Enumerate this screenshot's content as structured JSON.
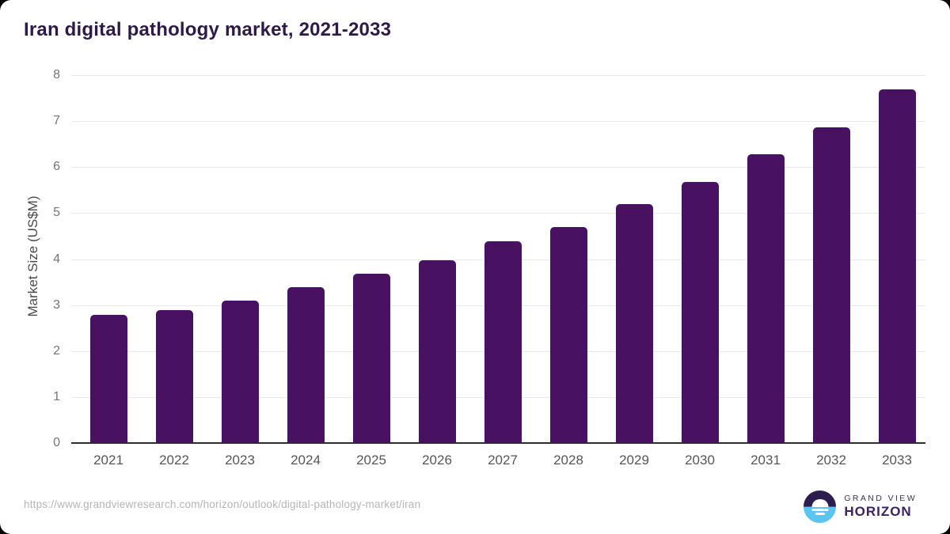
{
  "title": "Iran digital pathology market, 2021-2033",
  "source_url": "https://www.grandviewresearch.com/horizon/outlook/digital-pathology-market/iran",
  "logo": {
    "top": "GRAND VIEW",
    "bottom": "HORIZON",
    "mark": "sunrise-horizon-icon"
  },
  "colors": {
    "bar": "#481162",
    "title": "#2e1a47",
    "y_title": "#4a4a4a",
    "ytick": "#757575",
    "xtick": "#565656",
    "gridline": "#e9e9e9",
    "axis_line": "#2d2d2d",
    "url": "#b5b5b5",
    "logo_dark": "#2d1c4e",
    "logo_blue": "#5ac5f1",
    "logo_top_text": "#3a3550",
    "logo_bottom_text": "#3b2263"
  },
  "chart_data": {
    "type": "bar",
    "title": "Iran digital pathology market, 2021-2033",
    "categories": [
      "2021",
      "2022",
      "2023",
      "2024",
      "2025",
      "2026",
      "2027",
      "2028",
      "2029",
      "2030",
      "2031",
      "2032",
      "2033"
    ],
    "values": [
      2.78,
      2.89,
      3.09,
      3.39,
      3.69,
      3.98,
      4.38,
      4.69,
      5.19,
      5.68,
      6.28,
      6.87,
      7.69
    ],
    "xlabel": "",
    "ylabel": "Market Size (US$M)",
    "ylim": [
      0,
      8
    ],
    "yticks": [
      0,
      1,
      2,
      3,
      4,
      5,
      6,
      7,
      8
    ],
    "grid": "horizontal",
    "legend": "none",
    "bar_color": "#481162"
  }
}
